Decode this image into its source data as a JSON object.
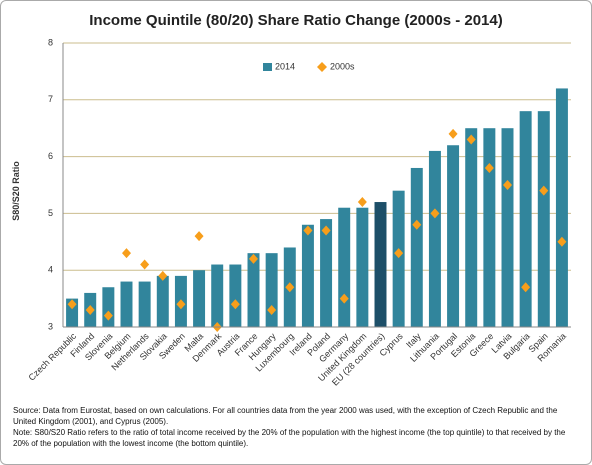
{
  "chart_data": {
    "type": "bar",
    "title": "Income Quintile (80/20) Share Ratio Change (2000s - 2014)",
    "y_label": "S80/S20 Ratio",
    "categories": [
      "Czech Republic",
      "Finland",
      "Slovenia",
      "Belgium",
      "Netherlands",
      "Slovakia",
      "Sweden",
      "Malta",
      "Denmark",
      "Austria",
      "France",
      "Hungary",
      "Luxembourg",
      "Ireland",
      "Poland",
      "Germany",
      "United Kingdom",
      "EU (28 countries)",
      "Cyprus",
      "Italy",
      "Lithuania",
      "Portugal",
      "Estonia",
      "Greece",
      "Latvia",
      "Bulgaria",
      "Spain",
      "Romania"
    ],
    "series": [
      {
        "name": "2014",
        "color": "#31859c",
        "values": [
          3.5,
          3.6,
          3.7,
          3.8,
          3.8,
          3.9,
          3.9,
          4.0,
          4.1,
          4.1,
          4.3,
          4.3,
          4.4,
          4.8,
          4.9,
          5.1,
          5.1,
          5.2,
          5.4,
          5.8,
          6.1,
          6.2,
          6.5,
          6.5,
          6.5,
          6.8,
          6.8,
          7.2
        ]
      },
      {
        "name": "2000s",
        "color": "#f79e1b",
        "values": [
          3.4,
          3.3,
          3.2,
          4.3,
          4.1,
          3.9,
          3.4,
          4.6,
          3.0,
          3.4,
          4.2,
          3.3,
          3.7,
          4.7,
          4.7,
          3.5,
          5.2,
          null,
          4.3,
          4.8,
          5.0,
          6.4,
          6.3,
          5.8,
          5.5,
          3.7,
          5.4,
          4.5
        ]
      }
    ],
    "highlight_category": "EU (28 countries)",
    "highlight_color": "#1d4f68",
    "ylim": [
      3,
      8
    ],
    "yticks": [
      3,
      4,
      5,
      6,
      7,
      8
    ],
    "grid": true,
    "notes": [
      "Source: Data from Eurostat, based on own calculations. For all countries data from the year 2000 was used, with the exception of Czech Republic and the United Kingdom (2001), and Cyprus (2005).",
      "Note: S80/S20 Ratio refers to the ratio of total income received by the 20% of the population with the highest income (the top quintile) to that received by the 20% of the population with the lowest income (the bottom quintile)."
    ]
  }
}
